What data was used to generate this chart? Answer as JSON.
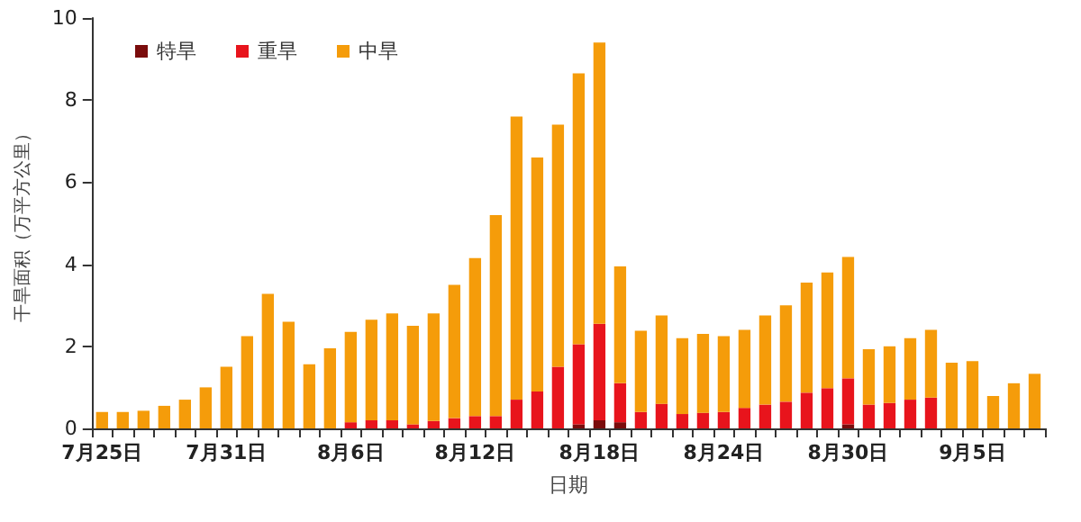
{
  "chart_data": {
    "type": "bar",
    "stacked": true,
    "xlabel": "日期",
    "ylabel": "干旱面积（万平方公里）",
    "ylim": [
      0,
      10
    ],
    "yticks": [
      0,
      2,
      4,
      6,
      8,
      10
    ],
    "grid": false,
    "legend": "top left",
    "categories": [
      "7月25日",
      null,
      null,
      null,
      null,
      null,
      "7月31日",
      null,
      null,
      null,
      null,
      null,
      "8月6日",
      null,
      null,
      null,
      null,
      null,
      "8月12日",
      null,
      null,
      null,
      null,
      null,
      "8月18日",
      null,
      null,
      null,
      null,
      null,
      "8月24日",
      null,
      null,
      null,
      null,
      null,
      "8月30日",
      null,
      null,
      null,
      null,
      null,
      "9月5日",
      null,
      null,
      null
    ],
    "series": [
      {
        "name": "特旱",
        "color": "#7a0c0c",
        "values": [
          0,
          0,
          0,
          0,
          0,
          0,
          0,
          0,
          0,
          0,
          0,
          0,
          0,
          0,
          0,
          0,
          0,
          0,
          0,
          0,
          0,
          0,
          0,
          0.1,
          0.2,
          0.15,
          0,
          0,
          0,
          0,
          0,
          0,
          0,
          0,
          0,
          0,
          0.1,
          0,
          0,
          0,
          0,
          0,
          0,
          0,
          0,
          0
        ]
      },
      {
        "name": "重旱",
        "color": "#e8141c",
        "values": [
          0,
          0,
          0,
          0,
          0,
          0,
          0,
          0,
          0,
          0,
          0,
          0,
          0.15,
          0.2,
          0.2,
          0.1,
          0.18,
          0.25,
          0.3,
          0.3,
          0.7,
          0.9,
          1.5,
          1.95,
          2.35,
          0.95,
          0.4,
          0.6,
          0.35,
          0.38,
          0.4,
          0.5,
          0.58,
          0.65,
          0.87,
          0.98,
          1.12,
          0.58,
          0.62,
          0.7,
          0.75,
          0,
          0,
          0,
          0,
          0
        ]
      },
      {
        "name": "中旱",
        "color": "#f59c0a",
        "values": [
          0.4,
          0.4,
          0.43,
          0.55,
          0.7,
          1.0,
          1.5,
          2.25,
          3.28,
          2.6,
          1.56,
          1.95,
          2.2,
          2.45,
          2.6,
          2.4,
          2.62,
          3.25,
          3.85,
          4.9,
          6.9,
          5.7,
          5.9,
          6.6,
          6.85,
          2.85,
          1.98,
          2.15,
          1.85,
          1.92,
          1.85,
          1.9,
          2.17,
          2.35,
          2.68,
          2.82,
          2.96,
          1.35,
          1.38,
          1.5,
          1.65,
          1.6,
          1.64,
          0.79,
          1.1,
          1.33
        ]
      }
    ]
  }
}
